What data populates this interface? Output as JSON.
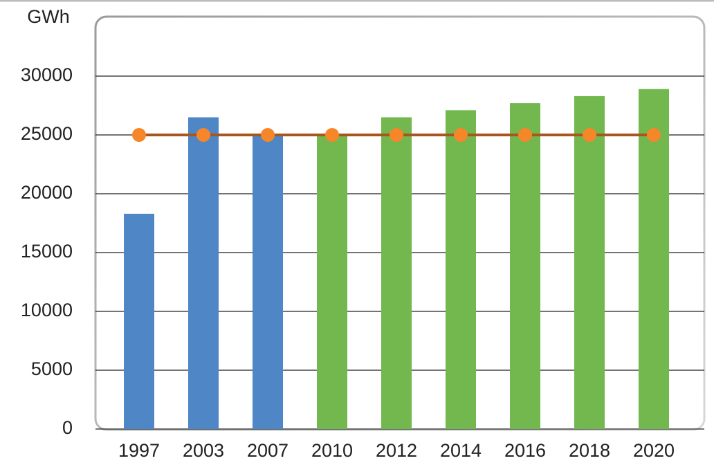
{
  "chart_data": {
    "type": "combo",
    "y_label": "GWh",
    "categories": [
      "1997",
      "2003",
      "2007",
      "2010",
      "2012",
      "2014",
      "2016",
      "2018",
      "2020"
    ],
    "series": [
      {
        "type": "bar",
        "values": [
          18300,
          26500,
          25000,
          25000,
          26500,
          27100,
          27700,
          28300,
          28900
        ],
        "colors": [
          "#4e86c6",
          "#4e86c6",
          "#4e86c6",
          "#72b84e",
          "#72b84e",
          "#72b84e",
          "#72b84e",
          "#72b84e",
          "#72b84e"
        ]
      },
      {
        "type": "line",
        "values": [
          25000,
          25000,
          25000,
          25000,
          25000,
          25000,
          25000,
          25000,
          25000
        ],
        "color": "#a8561e",
        "marker_color": "#f5862a"
      }
    ],
    "ylim": [
      0,
      35000
    ],
    "yticks": [
      0,
      5000,
      10000,
      15000,
      20000,
      25000,
      30000
    ],
    "grid": true
  }
}
